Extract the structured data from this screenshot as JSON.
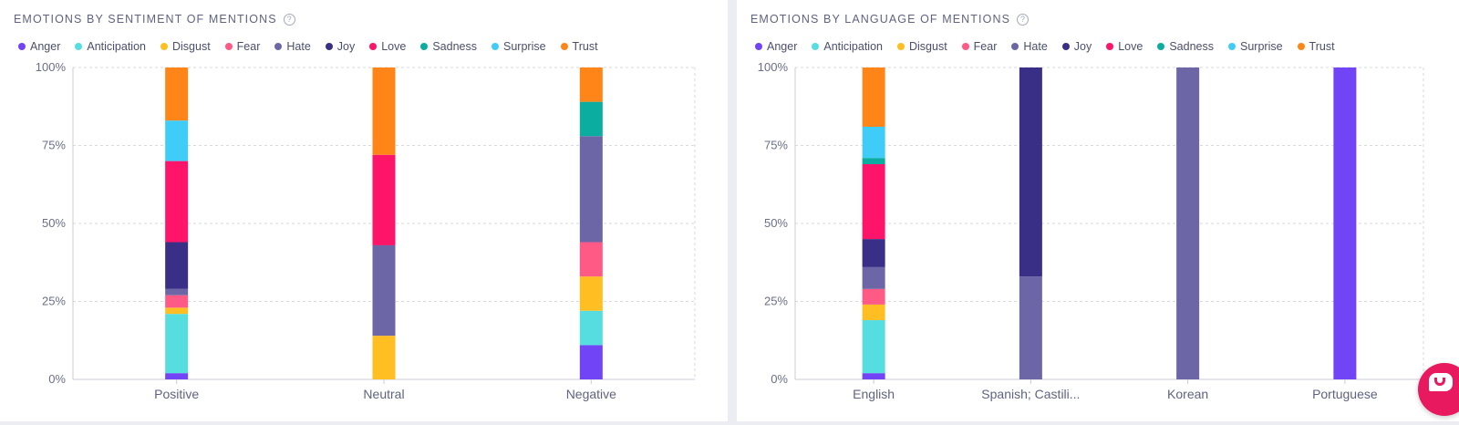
{
  "emotions": [
    {
      "name": "Anger",
      "color": "#7144f5"
    },
    {
      "name": "Anticipation",
      "color": "#56dde0"
    },
    {
      "name": "Disgust",
      "color": "#ffbe21"
    },
    {
      "name": "Fear",
      "color": "#ff5a86"
    },
    {
      "name": "Hate",
      "color": "#6c66a6"
    },
    {
      "name": "Joy",
      "color": "#3a2f86"
    },
    {
      "name": "Love",
      "color": "#fe1468"
    },
    {
      "name": "Sadness",
      "color": "#0bada0"
    },
    {
      "name": "Surprise",
      "color": "#3fcdf8"
    },
    {
      "name": "Trust",
      "color": "#ff8519"
    }
  ],
  "chat_button_icon": "chat-bubble-icon",
  "help_icon": "question-circle-icon",
  "help_icon_glyph": "?",
  "chart_data": [
    {
      "type": "bar",
      "stacked": true,
      "normalized": true,
      "title": "EMOTIONS BY SENTIMENT OF MENTIONS",
      "categories": [
        "Positive",
        "Neutral",
        "Negative"
      ],
      "ylim": [
        0,
        100
      ],
      "yticks": [
        "0%",
        "25%",
        "50%",
        "75%",
        "100%"
      ],
      "grid": true,
      "legend_position": "top-left",
      "series": [
        {
          "name": "Anger",
          "values": [
            2,
            0,
            11
          ]
        },
        {
          "name": "Anticipation",
          "values": [
            19,
            0,
            11
          ]
        },
        {
          "name": "Disgust",
          "values": [
            2,
            14,
            11
          ]
        },
        {
          "name": "Fear",
          "values": [
            4,
            0,
            11
          ]
        },
        {
          "name": "Hate",
          "values": [
            2,
            29,
            34
          ]
        },
        {
          "name": "Joy",
          "values": [
            15,
            0,
            0
          ]
        },
        {
          "name": "Love",
          "values": [
            26,
            29,
            0
          ]
        },
        {
          "name": "Sadness",
          "values": [
            0,
            0,
            11
          ]
        },
        {
          "name": "Surprise",
          "values": [
            13,
            0,
            0
          ]
        },
        {
          "name": "Trust",
          "values": [
            17,
            28,
            11
          ]
        }
      ]
    },
    {
      "type": "bar",
      "stacked": true,
      "normalized": true,
      "title": "EMOTIONS BY LANGUAGE OF MENTIONS",
      "categories": [
        "English",
        "Spanish; Castili...",
        "Korean",
        "Portuguese"
      ],
      "ylim": [
        0,
        100
      ],
      "yticks": [
        "0%",
        "25%",
        "50%",
        "75%",
        "100%"
      ],
      "grid": true,
      "legend_position": "top-left",
      "series": [
        {
          "name": "Anger",
          "values": [
            2,
            0,
            0,
            100
          ]
        },
        {
          "name": "Anticipation",
          "values": [
            17,
            0,
            0,
            0
          ]
        },
        {
          "name": "Disgust",
          "values": [
            5,
            0,
            0,
            0
          ]
        },
        {
          "name": "Fear",
          "values": [
            5,
            0,
            0,
            0
          ]
        },
        {
          "name": "Hate",
          "values": [
            7,
            33,
            100,
            0
          ]
        },
        {
          "name": "Joy",
          "values": [
            9,
            67,
            0,
            0
          ]
        },
        {
          "name": "Love",
          "values": [
            24,
            0,
            0,
            0
          ]
        },
        {
          "name": "Sadness",
          "values": [
            2,
            0,
            0,
            0
          ]
        },
        {
          "name": "Surprise",
          "values": [
            10,
            0,
            0,
            0
          ]
        },
        {
          "name": "Trust",
          "values": [
            19,
            0,
            0,
            0
          ]
        }
      ]
    }
  ]
}
